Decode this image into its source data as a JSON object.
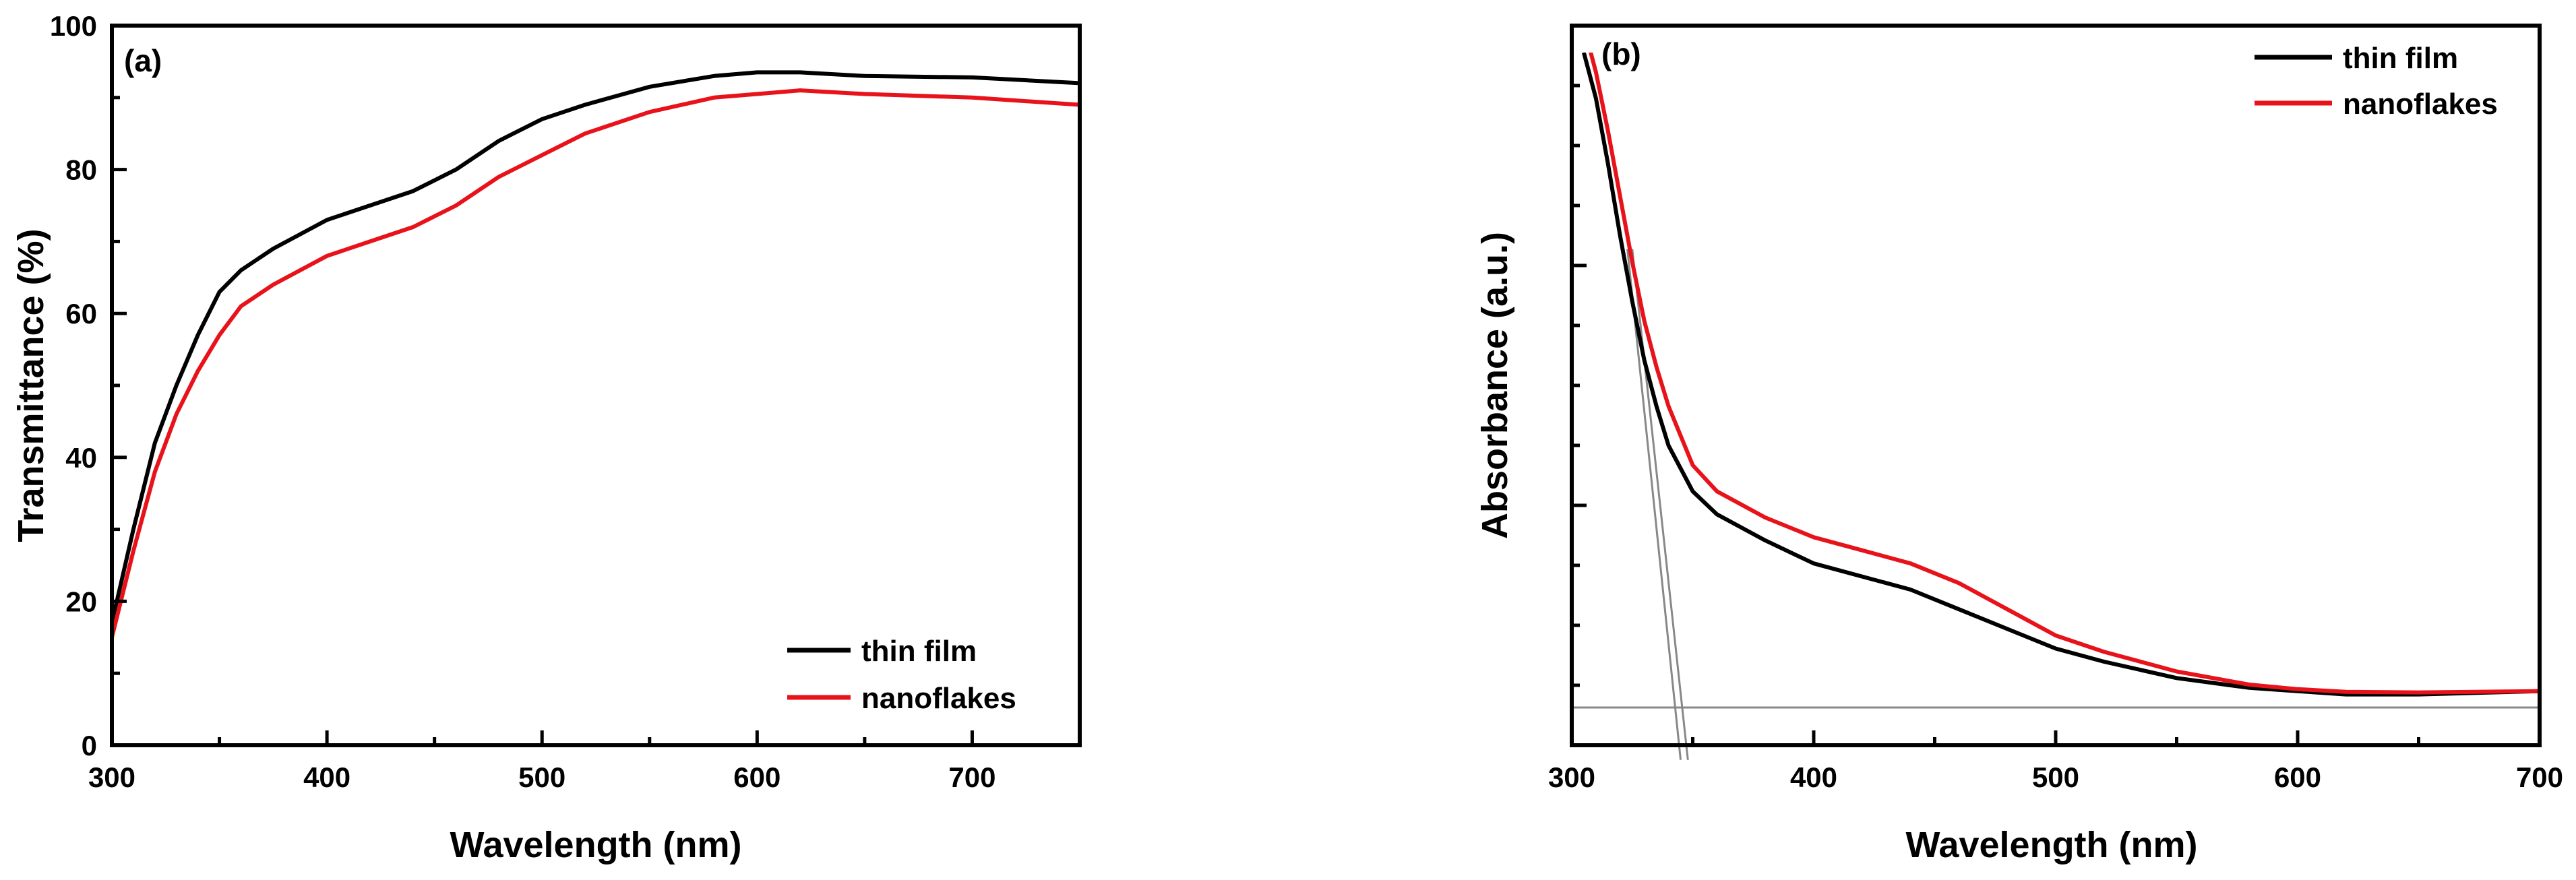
{
  "chart_data": [
    {
      "type": "line",
      "panel_label": "(a)",
      "xlabel": "Wavelength (nm)",
      "ylabel": "Transmittance (%)",
      "xlim": [
        300,
        750
      ],
      "ylim": [
        0,
        100
      ],
      "xticks": [
        300,
        400,
        500,
        600,
        700
      ],
      "yticks": [
        0,
        20,
        40,
        60,
        80,
        100
      ],
      "x_tick_labels": [
        "300",
        "400",
        "500",
        "600",
        "700"
      ],
      "y_tick_labels": [
        "0",
        "20",
        "40",
        "60",
        "80",
        "100"
      ],
      "legend_position": "bottom-right",
      "series": [
        {
          "name": "thin film",
          "color": "#000000",
          "x": [
            300,
            310,
            320,
            330,
            340,
            350,
            360,
            375,
            400,
            420,
            440,
            460,
            480,
            500,
            520,
            550,
            580,
            600,
            620,
            650,
            700,
            750
          ],
          "values": [
            17,
            30,
            42,
            50,
            57,
            63,
            66,
            69,
            73,
            75,
            77,
            80,
            84,
            87,
            89,
            91.5,
            93,
            93.5,
            93.5,
            93,
            92.8,
            92
          ]
        },
        {
          "name": "nanoflakes",
          "color": "#e8131a",
          "x": [
            300,
            310,
            320,
            330,
            340,
            350,
            360,
            375,
            400,
            420,
            440,
            460,
            480,
            500,
            520,
            550,
            580,
            600,
            620,
            650,
            700,
            750
          ],
          "values": [
            15,
            27,
            38,
            46,
            52,
            57,
            61,
            64,
            68,
            70,
            72,
            75,
            79,
            82,
            85,
            88,
            90,
            90.5,
            91,
            90.5,
            90,
            89
          ]
        }
      ]
    },
    {
      "type": "line",
      "panel_label": "(b)",
      "xlabel": "Wavelength (nm)",
      "ylabel": "Absorbance (a.u.)",
      "xlim": [
        300,
        700
      ],
      "ylim": [
        0,
        1
      ],
      "xticks": [
        300,
        400,
        500,
        600,
        700
      ],
      "x_tick_labels": [
        "300",
        "400",
        "500",
        "600",
        "700"
      ],
      "y_tick_labels": [],
      "legend_position": "top-right",
      "series": [
        {
          "name": "thin film",
          "color": "#000000",
          "x": [
            305,
            310,
            315,
            320,
            325,
            330,
            335,
            340,
            350,
            360,
            380,
            400,
            420,
            440,
            460,
            480,
            500,
            520,
            550,
            580,
            600,
            620,
            650,
            700
          ],
          "values": [
            1.0,
            0.93,
            0.83,
            0.72,
            0.62,
            0.53,
            0.46,
            0.4,
            0.33,
            0.295,
            0.255,
            0.22,
            0.2,
            0.18,
            0.15,
            0.12,
            0.09,
            0.07,
            0.045,
            0.03,
            0.025,
            0.02,
            0.02,
            0.025
          ]
        },
        {
          "name": "nanoflakes",
          "color": "#e8131a",
          "x": [
            305,
            310,
            315,
            320,
            325,
            330,
            335,
            340,
            350,
            360,
            380,
            400,
            420,
            440,
            460,
            480,
            500,
            520,
            550,
            580,
            600,
            620,
            650,
            700
          ],
          "values": [
            1.04,
            0.97,
            0.88,
            0.78,
            0.68,
            0.59,
            0.52,
            0.46,
            0.37,
            0.33,
            0.29,
            0.26,
            0.24,
            0.22,
            0.19,
            0.15,
            0.11,
            0.085,
            0.055,
            0.035,
            0.028,
            0.024,
            0.023,
            0.025
          ]
        }
      ],
      "fit_lines": [
        {
          "from": [
            323,
            0.7
          ],
          "to": [
            345,
            -0.08
          ]
        },
        {
          "from": [
            325,
            0.7
          ],
          "to": [
            348,
            -0.08
          ]
        }
      ],
      "baseline": {
        "y": 0.0,
        "x_from": 300,
        "x_to": 700
      },
      "baseline_color": "#888888"
    }
  ]
}
